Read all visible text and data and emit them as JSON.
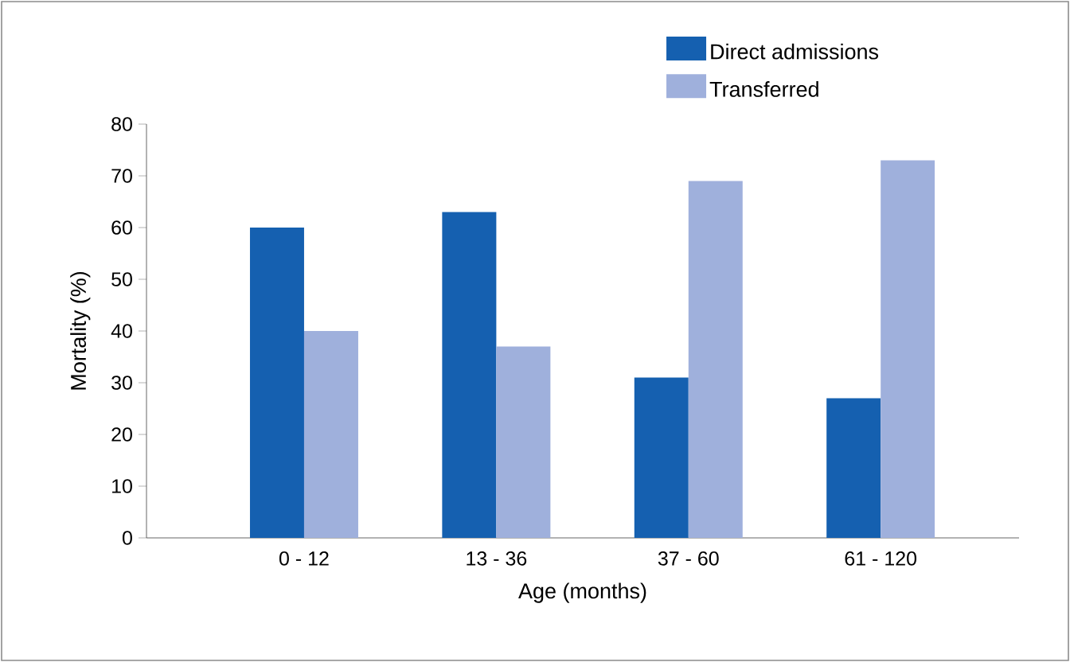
{
  "chart_data": {
    "type": "bar",
    "xlabel": "Age (months)",
    "ylabel": "Mortality (%)",
    "categories": [
      "0 - 12",
      "13 - 36",
      "37 - 60",
      "61 - 120"
    ],
    "series": [
      {
        "name": "Direct admissions",
        "color": "#1560b0",
        "values": [
          60,
          63,
          31,
          27
        ]
      },
      {
        "name": "Transferred",
        "color": "#9fb0dc",
        "values": [
          40,
          37,
          69,
          73
        ]
      }
    ],
    "ylim": [
      0,
      80
    ],
    "yticks": [
      0,
      10,
      20,
      30,
      40,
      50,
      60,
      70,
      80
    ],
    "legend": "top right"
  }
}
